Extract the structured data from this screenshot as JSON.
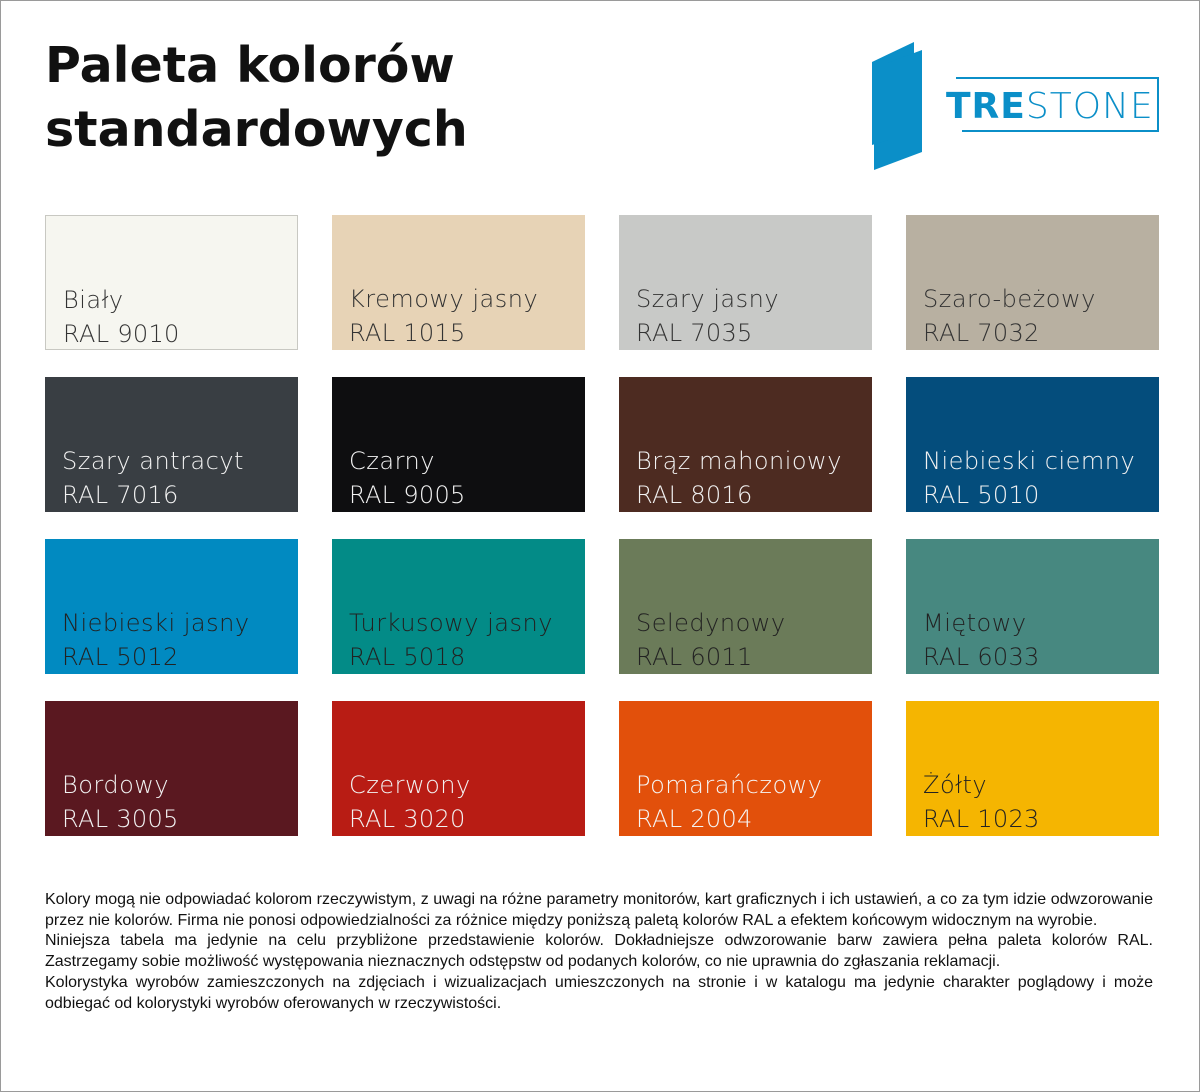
{
  "title": "Paleta kolorów standardowych",
  "logo": {
    "text_bold": "TRE",
    "text_light": "STONE",
    "color": "#0b8fc8"
  },
  "swatches": [
    {
      "name": "Biały",
      "code": "RAL 9010",
      "color": "#f6f6f0",
      "text": "#333333"
    },
    {
      "name": "Kremowy jasny",
      "code": "RAL 1015",
      "color": "#e7d3b6",
      "text": "#333333"
    },
    {
      "name": "Szary jasny",
      "code": "RAL 7035",
      "color": "#c8c9c7",
      "text": "#333333"
    },
    {
      "name": "Szaro-beżowy",
      "code": "RAL 7032",
      "color": "#b8b0a1",
      "text": "#333333"
    },
    {
      "name": "Szary antracyt",
      "code": "RAL 7016",
      "color": "#393e43",
      "text": "#f2f2f2"
    },
    {
      "name": "Czarny",
      "code": "RAL 9005",
      "color": "#0e0e10",
      "text": "#f2f2f2"
    },
    {
      "name": "Brąz mahoniowy",
      "code": "RAL 8016",
      "color": "#4d2b21",
      "text": "#f2f2f2"
    },
    {
      "name": "Niebieski ciemny",
      "code": "RAL 5010",
      "color": "#044d7c",
      "text": "#f2f2f2"
    },
    {
      "name": "Niebieski jasny",
      "code": "RAL 5012",
      "color": "#018ac1",
      "text": "#222222"
    },
    {
      "name": "Turkusowy jasny",
      "code": "RAL 5018",
      "color": "#038b87",
      "text": "#222222"
    },
    {
      "name": "Seledynowy",
      "code": "RAL 6011",
      "color": "#6b7b59",
      "text": "#222222"
    },
    {
      "name": "Miętowy",
      "code": "RAL 6033",
      "color": "#478880",
      "text": "#222222"
    },
    {
      "name": "Bordowy",
      "code": "RAL 3005",
      "color": "#5a1820",
      "text": "#f2f2f2"
    },
    {
      "name": "Czerwony",
      "code": "RAL 3020",
      "color": "#b81c14",
      "text": "#f2f2f2"
    },
    {
      "name": "Pomarańczowy",
      "code": "RAL 2004",
      "color": "#e2500b",
      "text": "#f5f5f5"
    },
    {
      "name": "Żółty",
      "code": "RAL 1023",
      "color": "#f5b501",
      "text": "#222222"
    }
  ],
  "footer": [
    "Kolory mogą nie odpowiadać kolorom rzeczywistym, z uwagi na różne parametry monitorów, kart graficznych i ich ustawień, a co za tym idzie odwzorowanie przez nie kolorów. Firma nie ponosi odpowiedzialności za różnice między poniższą paletą kolorów RAL a efektem końcowym widocznym na wyrobie.",
    "Niniejsza tabela ma jedynie na celu przybliżone przedstawienie kolorów. Dokładniejsze odwzorowanie barw zawiera pełna paleta kolorów RAL. Zastrzegamy sobie możliwość występowania nieznacznych odstępstw od podanych kolorów, co nie uprawnia do zgłaszania reklamacji.",
    "Kolorystyka wyrobów zamieszczonych na zdjęciach i wizualizacjach umieszczonych na stronie i w katalogu ma jedynie charakter poglądowy i może odbiegać od kolorystyki wyrobów oferowanych w rzeczywistości."
  ]
}
